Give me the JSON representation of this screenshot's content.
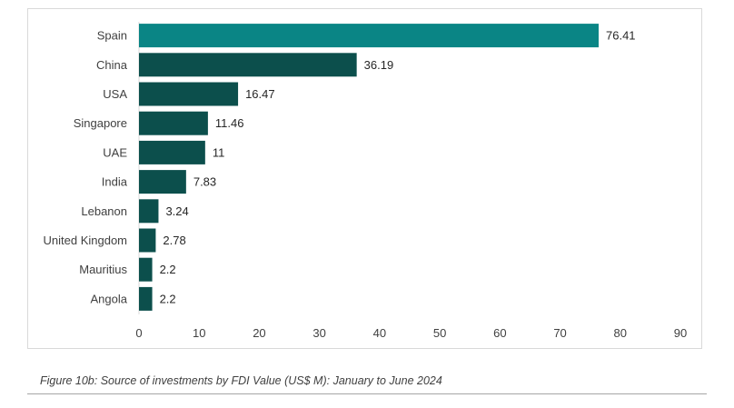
{
  "chart_data": {
    "type": "bar",
    "orientation": "horizontal",
    "categories": [
      "Spain",
      "China",
      "USA",
      "Singapore",
      "UAE",
      "India",
      "Lebanon",
      "United Kingdom",
      "Mauritius",
      "Angola"
    ],
    "values": [
      76.41,
      36.19,
      16.47,
      11.46,
      11,
      7.83,
      3.24,
      2.78,
      2.2,
      2.2
    ],
    "value_labels": [
      "76.41",
      "36.19",
      "16.47",
      "11.46",
      "11",
      "7.83",
      "3.24",
      "2.78",
      "2.2",
      "2.2"
    ],
    "xlim": [
      0,
      90
    ],
    "xticks": [
      0,
      10,
      20,
      30,
      40,
      50,
      60,
      70,
      80,
      90
    ],
    "grid": false,
    "colors": {
      "highlight": "#0a8585",
      "default": "#0c4f4c"
    },
    "highlight_index": 0
  },
  "caption": "Figure 10b: Source of investments by FDI Value (US$ M): January to June 2024"
}
